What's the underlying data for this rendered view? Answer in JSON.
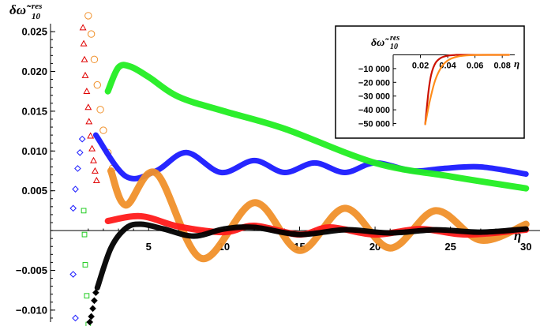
{
  "chart_data": [
    {
      "type": "scatter",
      "xlabel": "η",
      "ylabel": "δω̃",
      "ylabel_sup": "res",
      "ylabel_sub": "10",
      "xlim": [
        -1.5,
        30.3
      ],
      "ylim": [
        -0.0115,
        0.026
      ],
      "xticks": [
        5,
        10,
        15,
        20,
        25,
        30
      ],
      "xtick_labels": [
        "5",
        "10",
        "15",
        "20",
        "25",
        "30"
      ],
      "yticks": [
        -0.01,
        -0.005,
        0.005,
        0.01,
        0.015,
        0.02,
        0.025
      ],
      "ytick_labels": [
        "−0.010",
        "−0.005",
        "0.005",
        "0.010",
        "0.015",
        "0.020",
        "0.025"
      ],
      "series": [
        {
          "color": "#1a1aff",
          "marker": "diamond-open",
          "points": [
            [
              0.0,
              0.0028
            ],
            [
              0.15,
              0.0052
            ],
            [
              0.3,
              0.0078
            ],
            [
              0.45,
              0.0098
            ],
            [
              0.6,
              0.0115
            ],
            [
              0.0,
              -0.0055
            ],
            [
              0.15,
              -0.011
            ]
          ]
        },
        {
          "color": "#e00000",
          "marker": "triangle-open",
          "points": [
            [
              0.65,
              0.0255
            ],
            [
              0.7,
              0.0235
            ],
            [
              0.75,
              0.0215
            ],
            [
              0.8,
              0.0195
            ],
            [
              0.9,
              0.0175
            ],
            [
              1.0,
              0.0155
            ],
            [
              1.05,
              0.0137
            ],
            [
              1.15,
              0.0119
            ],
            [
              1.25,
              0.0103
            ],
            [
              1.35,
              0.0088
            ],
            [
              1.45,
              0.0075
            ],
            [
              1.55,
              0.0063
            ]
          ]
        },
        {
          "color": "#22cc22",
          "marker": "square-open",
          "points": [
            [
              0.7,
              0.0025
            ],
            [
              0.75,
              -0.0005
            ],
            [
              0.8,
              -0.0043
            ],
            [
              0.9,
              -0.0082
            ],
            [
              1.0,
              -0.0118
            ]
          ]
        },
        {
          "color": "#f0902a",
          "marker": "circle-open",
          "points": [
            [
              1.0,
              0.027
            ],
            [
              1.2,
              0.0247
            ],
            [
              1.4,
              0.0215
            ],
            [
              1.6,
              0.0183
            ],
            [
              1.8,
              0.0152
            ],
            [
              2.0,
              0.0126
            ],
            [
              2.3,
              0.0098
            ],
            [
              2.6,
              0.0078
            ]
          ]
        },
        {
          "color": "#000000",
          "marker": "diamond-filled",
          "points": [
            [
              1.5,
              -0.0078
            ],
            [
              1.4,
              -0.0088
            ],
            [
              1.3,
              -0.0098
            ],
            [
              1.2,
              -0.0108
            ],
            [
              1.1,
              -0.0115
            ]
          ]
        },
        {
          "color": "#1a1aff",
          "name": "",
          "points": [
            [
              1.5,
              0.012
            ],
            [
              3.5,
              0.0068
            ],
            [
              5.5,
              0.0075
            ],
            [
              7.5,
              0.0098
            ],
            [
              9.8,
              0.0073
            ],
            [
              12,
              0.0088
            ],
            [
              14,
              0.0073
            ],
            [
              16,
              0.0085
            ],
            [
              18,
              0.0073
            ],
            [
              20,
              0.0085
            ],
            [
              22.5,
              0.0075
            ],
            [
              24.5,
              0.0078
            ],
            [
              27,
              0.008
            ],
            [
              30,
              0.0071
            ]
          ]
        },
        {
          "color": "#22ee22",
          "name": "",
          "points": [
            [
              2.3,
              0.0175
            ],
            [
              3,
              0.0205
            ],
            [
              3.8,
              0.0206
            ],
            [
              5,
              0.0193
            ],
            [
              7,
              0.0168
            ],
            [
              10,
              0.015
            ],
            [
              14,
              0.0128
            ],
            [
              20,
              0.0085
            ],
            [
              25,
              0.0068
            ],
            [
              30,
              0.0053
            ]
          ]
        },
        {
          "color": "#f0902a",
          "name": "",
          "points": [
            [
              2.5,
              0.0075
            ],
            [
              3.5,
              0.0032
            ],
            [
              5.5,
              0.0072
            ],
            [
              8.5,
              -0.0035
            ],
            [
              12,
              0.0035
            ],
            [
              15,
              -0.0025
            ],
            [
              18,
              0.0028
            ],
            [
              21,
              -0.0022
            ],
            [
              24,
              0.0025
            ],
            [
              27,
              -0.0012
            ],
            [
              30,
              0.0008
            ]
          ]
        },
        {
          "color": "#ff1a1a",
          "name": "",
          "points": [
            [
              2.3,
              0.0012
            ],
            [
              4.5,
              0.0018
            ],
            [
              7,
              0.0005
            ],
            [
              10,
              -0.0002
            ],
            [
              12,
              0.0006
            ],
            [
              15,
              -0.0005
            ],
            [
              17,
              0.0004
            ],
            [
              20,
              -0.0005
            ],
            [
              23,
              0.0002
            ],
            [
              26,
              -0.0005
            ],
            [
              30,
              0.0001
            ]
          ]
        },
        {
          "color": "#000000",
          "name": "",
          "points": [
            [
              1.6,
              -0.0072
            ],
            [
              2.5,
              -0.0022
            ],
            [
              3.5,
              0.0003
            ],
            [
              4.5,
              0.0008
            ],
            [
              6,
              0.0002
            ],
            [
              8,
              -0.0007
            ],
            [
              10,
              0.0002
            ],
            [
              12,
              0.0004
            ],
            [
              15,
              -0.0005
            ],
            [
              18,
              0.0001
            ],
            [
              21,
              -0.0003
            ],
            [
              24,
              0.0001
            ],
            [
              27,
              -0.0002
            ],
            [
              30,
              0.0002
            ]
          ]
        }
      ]
    },
    {
      "type": "line",
      "xlabel": "η",
      "ylabel": "δω̃",
      "ylabel_sup": "res",
      "ylabel_sub": "10",
      "xlim": [
        0.0,
        0.088
      ],
      "ylim": [
        -52000,
        2000
      ],
      "xticks": [
        0.02,
        0.04,
        0.06,
        0.08
      ],
      "xtick_labels": [
        "0.02",
        "0.04",
        "0.06",
        "0.08"
      ],
      "yticks": [
        -10000,
        -20000,
        -30000,
        -40000,
        -50000
      ],
      "ytick_labels": [
        "−10 000",
        "−20 000",
        "−30 000",
        "−40 000",
        "−50 000"
      ],
      "series": [
        {
          "color": "#cc1100",
          "points": [
            [
              0.0235,
              -50500
            ],
            [
              0.026,
              -26000
            ],
            [
              0.028,
              -14000
            ],
            [
              0.031,
              -6000
            ],
            [
              0.035,
              -2200
            ],
            [
              0.04,
              -600
            ],
            [
              0.045,
              -150
            ],
            [
              0.05,
              0
            ],
            [
              0.085,
              0
            ]
          ]
        },
        {
          "color": "#ff8c1a",
          "points": [
            [
              0.0235,
              -50500
            ],
            [
              0.027,
              -33000
            ],
            [
              0.031,
              -18000
            ],
            [
              0.036,
              -8000
            ],
            [
              0.041,
              -3500
            ],
            [
              0.047,
              -1300
            ],
            [
              0.054,
              -400
            ],
            [
              0.062,
              -80
            ],
            [
              0.07,
              0
            ],
            [
              0.085,
              0
            ]
          ]
        }
      ]
    }
  ]
}
